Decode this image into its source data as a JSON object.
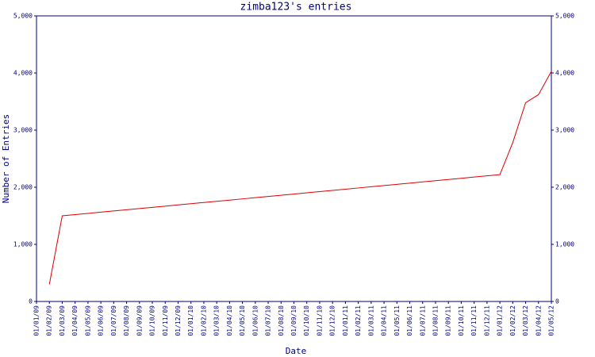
{
  "chart_data": {
    "type": "line",
    "title": "zimba123's entries",
    "xlabel": "Date",
    "ylabel": "Number of Entries",
    "categories": [
      "01/01/09",
      "01/02/09",
      "01/03/09",
      "01/04/09",
      "01/05/09",
      "01/06/09",
      "01/07/09",
      "01/08/09",
      "01/09/09",
      "01/10/09",
      "01/11/09",
      "01/12/09",
      "01/01/10",
      "01/02/10",
      "01/03/10",
      "01/04/10",
      "01/05/10",
      "01/06/10",
      "01/07/10",
      "01/08/10",
      "01/09/10",
      "01/10/10",
      "01/11/10",
      "01/12/10",
      "01/01/11",
      "01/02/11",
      "01/03/11",
      "01/04/11",
      "01/05/11",
      "01/06/11",
      "01/07/11",
      "01/08/11",
      "01/09/11",
      "01/10/11",
      "01/11/11",
      "01/12/11",
      "01/01/12",
      "01/02/12",
      "01/03/12",
      "01/04/12",
      "01/05/12"
    ],
    "series": [
      {
        "color": "#dd0000",
        "values": [
          null,
          300,
          1500,
          1521,
          1542,
          1564,
          1585,
          1606,
          1627,
          1648,
          1669,
          1691,
          1712,
          1733,
          1754,
          1775,
          1796,
          1818,
          1839,
          1860,
          1881,
          1902,
          1924,
          1945,
          1966,
          1987,
          2008,
          2029,
          2051,
          2072,
          2093,
          2114,
          2135,
          2156,
          2178,
          2199,
          2220,
          2780,
          3480,
          3620,
          4030
        ]
      }
    ],
    "ylim": [
      0,
      5000
    ],
    "yticks": [
      0,
      {
        "value": 1000,
        "label": "1,000"
      },
      {
        "value": 2000,
        "label": "2,000"
      },
      {
        "value": 3000,
        "label": "3,000"
      },
      {
        "value": 4000,
        "label": "4,000"
      },
      {
        "value": 5000,
        "label": "5,000"
      }
    ],
    "axis_color": "#000080"
  }
}
